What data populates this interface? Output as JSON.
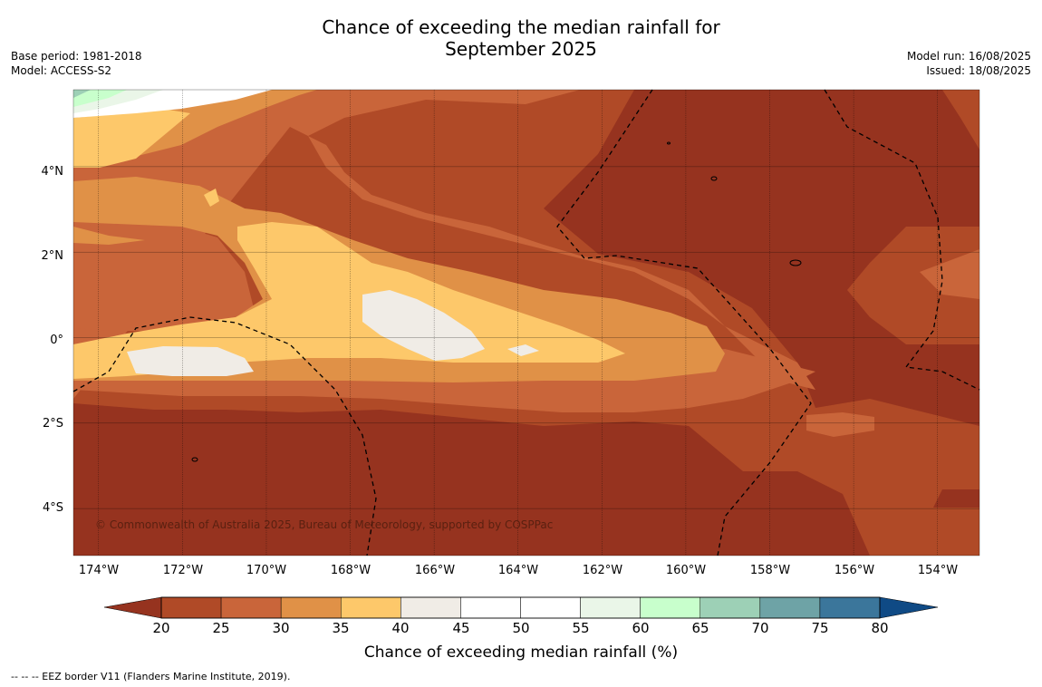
{
  "title_line1": "Chance of exceeding the median rainfall for",
  "title_line2": "September 2025",
  "base_period": "Base period: 1981-2018",
  "model": "Model: ACCESS-S2",
  "model_run": "Model run: 16/08/2025",
  "issued": "Issued: 18/08/2025",
  "copyright": "© Commonwealth of Australia 2025, Bureau of Meteorology, supported by COSPPac",
  "footnote": "--  --  -- EEZ border V11 (Flanders Marine Institute, 2019).",
  "map": {
    "lon_range": [
      -174.6,
      -153.0
    ],
    "lat_range": [
      -5.1,
      5.8
    ],
    "lon_ticks": [
      -174,
      -172,
      -170,
      -168,
      -166,
      -164,
      -162,
      -160,
      -158,
      -156,
      -154
    ],
    "lon_labels": [
      "174°W",
      "172°W",
      "170°W",
      "168°W",
      "166°W",
      "164°W",
      "162°W",
      "160°W",
      "158°W",
      "156°W",
      "154°W"
    ],
    "lat_ticks": [
      4,
      2,
      0,
      -2,
      -4
    ],
    "lat_labels": [
      "4°N",
      "2°N",
      "0°",
      "2°S",
      "4°S"
    ]
  },
  "colorbar": {
    "label": "Chance of exceeding median rainfall (%)",
    "ticks": [
      "20",
      "25",
      "30",
      "35",
      "40",
      "45",
      "50",
      "55",
      "60",
      "65",
      "70",
      "75",
      "80"
    ],
    "under_color": "#96331f",
    "over_color": "#0f4a85",
    "colors": [
      "#b04a27",
      "#c9653a",
      "#e09147",
      "#fdc86a",
      "#f0ece6",
      "#ffffff",
      "#ffffff",
      "#eaf6e8",
      "#c8ffcc",
      "#9dd0b6",
      "#6ea3a6",
      "#3b769b"
    ]
  }
}
